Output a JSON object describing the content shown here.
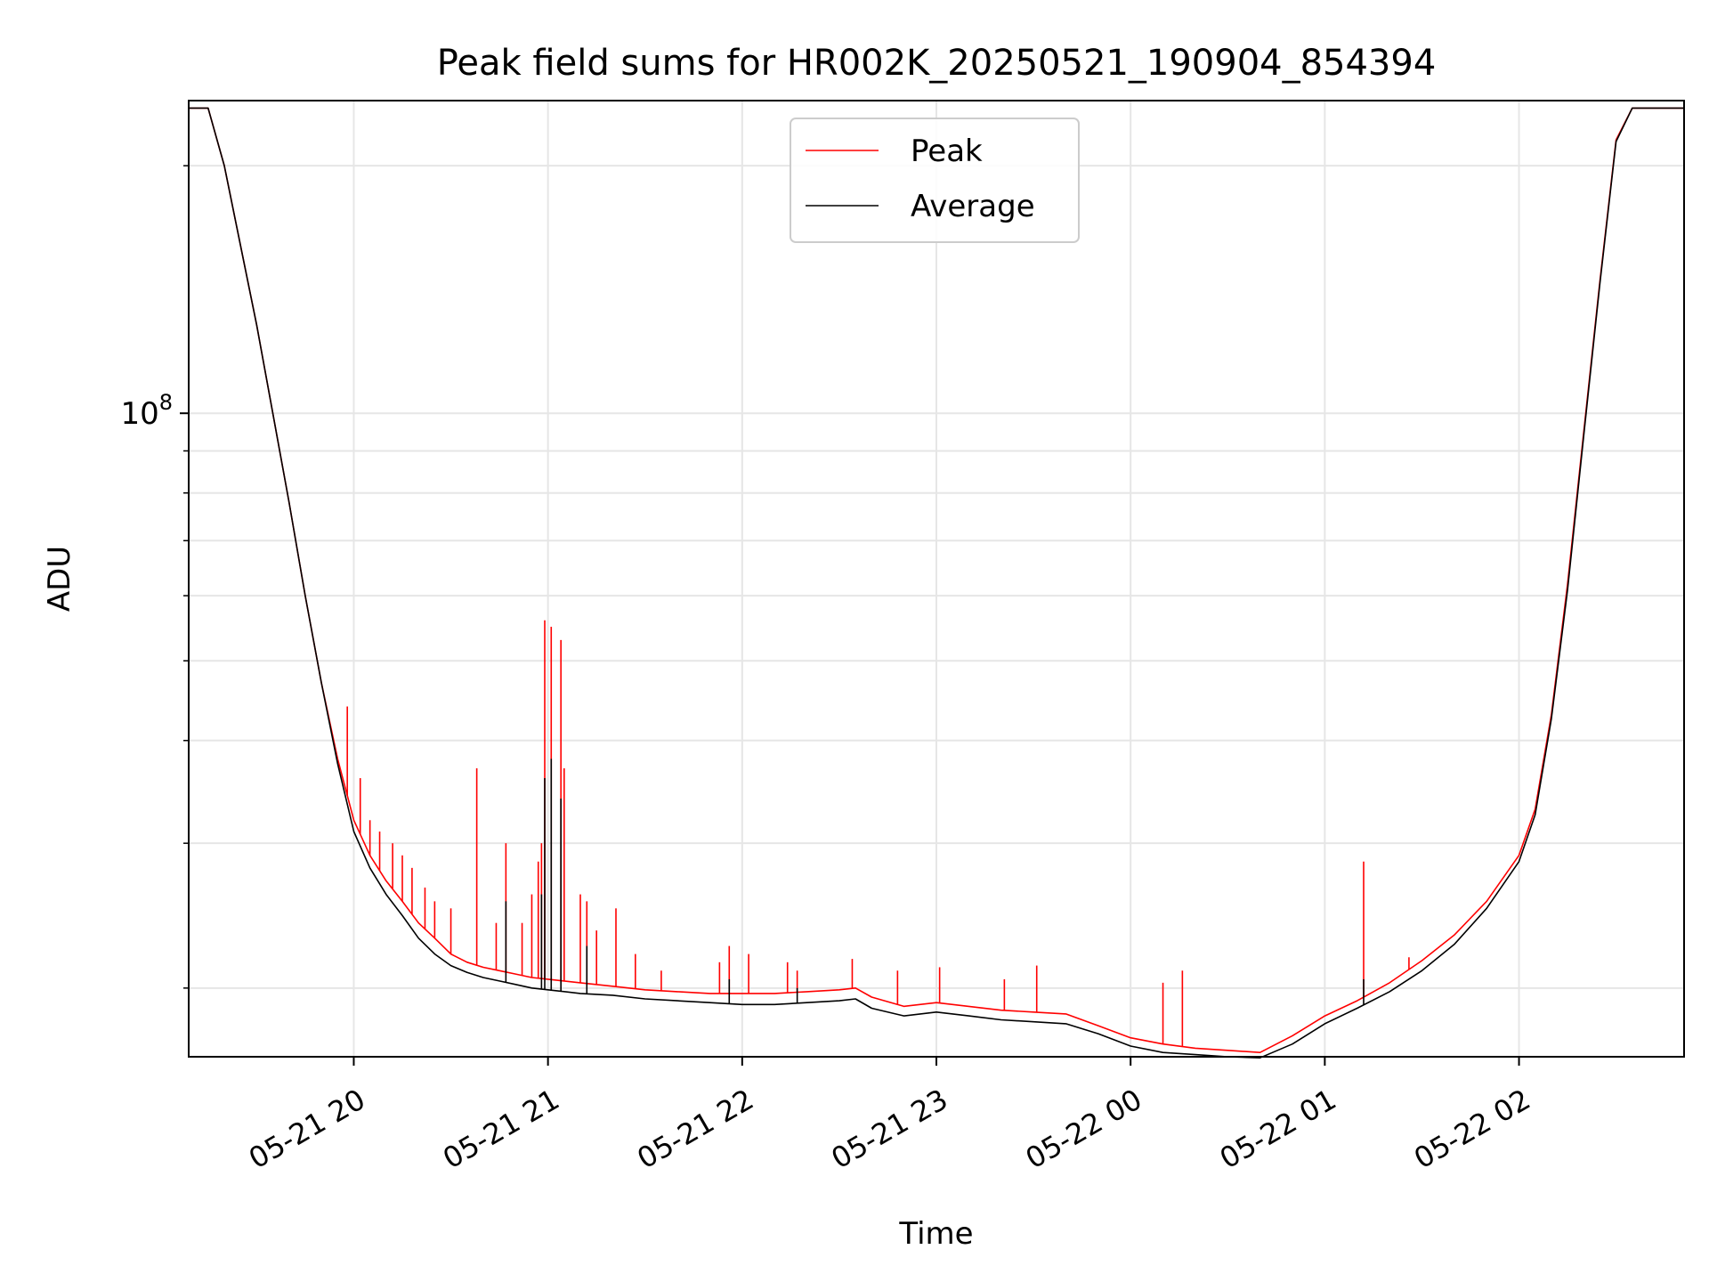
{
  "chart_data": {
    "type": "line",
    "title": "Peak field sums for HR002K_20250521_190904_854394",
    "xlabel": "Time",
    "ylabel": "ADU",
    "x_ticks": [
      "05-21 20",
      "05-21 21",
      "05-21 22",
      "05-21 23",
      "05-22 00",
      "05-22 01",
      "05-22 02"
    ],
    "y_tick_major": {
      "base": "10",
      "exponent": "8"
    },
    "y_scale": "log",
    "y_minor_ticks": [
      20000000.0,
      30000000.0,
      40000000.0,
      50000000.0,
      60000000.0,
      70000000.0,
      80000000.0,
      90000000.0,
      200000000.0
    ],
    "xlim": [
      "05-21 19:09",
      "05-22 02:51"
    ],
    "ylim": [
      16500000,
      240000000
    ],
    "grid": true,
    "legend_position": "upper center",
    "series": [
      {
        "name": "Peak",
        "color": "#ff0000",
        "points": [
          [
            "05-21 19:09",
            235000000
          ],
          [
            "05-21 19:15",
            235000000
          ],
          [
            "05-21 19:20",
            200000000
          ],
          [
            "05-21 19:25",
            160000000
          ],
          [
            "05-21 19:30",
            128000000
          ],
          [
            "05-21 19:35",
            100000000
          ],
          [
            "05-21 19:40",
            78000000
          ],
          [
            "05-21 19:45",
            60000000
          ],
          [
            "05-21 19:50",
            47000000
          ],
          [
            "05-21 19:55",
            38000000
          ],
          [
            "05-21 20:00",
            32000000
          ],
          [
            "05-21 20:05",
            29000000
          ],
          [
            "05-21 20:10",
            27000000
          ],
          [
            "05-21 20:15",
            25500000
          ],
          [
            "05-21 20:20",
            24000000
          ],
          [
            "05-21 20:25",
            23000000
          ],
          [
            "05-21 20:30",
            22000000
          ],
          [
            "05-21 20:35",
            21500000
          ],
          [
            "05-21 20:40",
            21200000
          ],
          [
            "05-21 20:45",
            21000000
          ],
          [
            "05-21 20:50",
            20800000
          ],
          [
            "05-21 20:55",
            20600000
          ],
          [
            "05-21 21:00",
            20500000
          ],
          [
            "05-21 21:10",
            20300000
          ],
          [
            "05-21 21:20",
            20100000
          ],
          [
            "05-21 21:30",
            19900000
          ],
          [
            "05-21 21:40",
            19800000
          ],
          [
            "05-21 21:50",
            19700000
          ],
          [
            "05-21 22:00",
            19700000
          ],
          [
            "05-21 22:10",
            19700000
          ],
          [
            "05-21 22:20",
            19800000
          ],
          [
            "05-21 22:30",
            19900000
          ],
          [
            "05-21 22:35",
            20000000
          ],
          [
            "05-21 22:40",
            19500000
          ],
          [
            "05-21 22:50",
            19000000
          ],
          [
            "05-21 23:00",
            19200000
          ],
          [
            "05-21 23:10",
            19000000
          ],
          [
            "05-21 23:20",
            18800000
          ],
          [
            "05-21 23:30",
            18700000
          ],
          [
            "05-21 23:40",
            18600000
          ],
          [
            "05-21 23:50",
            18000000
          ],
          [
            "05-22 00:00",
            17400000
          ],
          [
            "05-22 00:10",
            17100000
          ],
          [
            "05-22 00:20",
            16900000
          ],
          [
            "05-22 00:30",
            16800000
          ],
          [
            "05-22 00:40",
            16700000
          ],
          [
            "05-22 00:50",
            17500000
          ],
          [
            "05-22 01:00",
            18500000
          ],
          [
            "05-22 01:10",
            19300000
          ],
          [
            "05-22 01:20",
            20300000
          ],
          [
            "05-22 01:30",
            21600000
          ],
          [
            "05-22 01:40",
            23200000
          ],
          [
            "05-22 01:50",
            25500000
          ],
          [
            "05-22 02:00",
            29000000
          ],
          [
            "05-22 02:05",
            33000000
          ],
          [
            "05-22 02:10",
            43000000
          ],
          [
            "05-22 02:15",
            62000000
          ],
          [
            "05-22 02:20",
            95000000
          ],
          [
            "05-22 02:25",
            145000000
          ],
          [
            "05-22 02:30",
            215000000
          ],
          [
            "05-22 02:35",
            235000000
          ],
          [
            "05-22 02:51",
            235000000
          ]
        ],
        "spikes": [
          [
            "05-21 19:58",
            44000000
          ],
          [
            "05-21 20:02",
            36000000
          ],
          [
            "05-21 20:05",
            32000000
          ],
          [
            "05-21 20:08",
            31000000
          ],
          [
            "05-21 20:12",
            30000000
          ],
          [
            "05-21 20:15",
            29000000
          ],
          [
            "05-21 20:18",
            28000000
          ],
          [
            "05-21 20:22",
            26500000
          ],
          [
            "05-21 20:25",
            25500000
          ],
          [
            "05-21 20:30",
            25000000
          ],
          [
            "05-21 20:38",
            37000000
          ],
          [
            "05-21 20:44",
            24000000
          ],
          [
            "05-21 20:47",
            30000000
          ],
          [
            "05-21 20:52",
            24000000
          ],
          [
            "05-21 20:55",
            26000000
          ],
          [
            "05-21 20:57",
            28500000
          ],
          [
            "05-21 20:58",
            30000000
          ],
          [
            "05-21 20:59",
            56000000
          ],
          [
            "05-21 21:01",
            55000000
          ],
          [
            "05-21 21:04",
            53000000
          ],
          [
            "05-21 21:05",
            37000000
          ],
          [
            "05-21 21:10",
            26000000
          ],
          [
            "05-21 21:12",
            25500000
          ],
          [
            "05-21 21:15",
            23500000
          ],
          [
            "05-21 21:21",
            25000000
          ],
          [
            "05-21 21:27",
            22000000
          ],
          [
            "05-21 21:35",
            21000000
          ],
          [
            "05-21 21:53",
            21500000
          ],
          [
            "05-21 21:56",
            22500000
          ],
          [
            "05-21 22:02",
            22000000
          ],
          [
            "05-21 22:14",
            21500000
          ],
          [
            "05-21 22:17",
            21000000
          ],
          [
            "05-21 22:34",
            21700000
          ],
          [
            "05-21 22:48",
            21000000
          ],
          [
            "05-21 23:01",
            21200000
          ],
          [
            "05-21 23:21",
            20500000
          ],
          [
            "05-21 23:31",
            21300000
          ],
          [
            "05-22 00:10",
            20300000
          ],
          [
            "05-22 00:16",
            21000000
          ],
          [
            "05-22 01:12",
            28500000
          ],
          [
            "05-22 01:26",
            21800000
          ]
        ]
      },
      {
        "name": "Average",
        "color": "#000000",
        "points": [
          [
            "05-21 19:09",
            235000000
          ],
          [
            "05-21 19:15",
            235000000
          ],
          [
            "05-21 19:20",
            200000000
          ],
          [
            "05-21 19:25",
            160000000
          ],
          [
            "05-21 19:30",
            128000000
          ],
          [
            "05-21 19:35",
            100000000
          ],
          [
            "05-21 19:40",
            78000000
          ],
          [
            "05-21 19:45",
            60000000
          ],
          [
            "05-21 19:50",
            47000000
          ],
          [
            "05-21 19:55",
            37500000
          ],
          [
            "05-21 20:00",
            31000000
          ],
          [
            "05-21 20:05",
            28000000
          ],
          [
            "05-21 20:10",
            26000000
          ],
          [
            "05-21 20:15",
            24500000
          ],
          [
            "05-21 20:20",
            23000000
          ],
          [
            "05-21 20:25",
            22000000
          ],
          [
            "05-21 20:30",
            21300000
          ],
          [
            "05-21 20:35",
            20900000
          ],
          [
            "05-21 20:40",
            20600000
          ],
          [
            "05-21 20:45",
            20400000
          ],
          [
            "05-21 20:50",
            20200000
          ],
          [
            "05-21 20:55",
            20000000
          ],
          [
            "05-21 21:00",
            19900000
          ],
          [
            "05-21 21:10",
            19700000
          ],
          [
            "05-21 21:20",
            19600000
          ],
          [
            "05-21 21:30",
            19400000
          ],
          [
            "05-21 21:40",
            19300000
          ],
          [
            "05-21 21:50",
            19200000
          ],
          [
            "05-21 22:00",
            19100000
          ],
          [
            "05-21 22:10",
            19100000
          ],
          [
            "05-21 22:20",
            19200000
          ],
          [
            "05-21 22:30",
            19300000
          ],
          [
            "05-21 22:35",
            19400000
          ],
          [
            "05-21 22:40",
            18900000
          ],
          [
            "05-21 22:50",
            18500000
          ],
          [
            "05-21 23:00",
            18700000
          ],
          [
            "05-21 23:10",
            18500000
          ],
          [
            "05-21 23:20",
            18300000
          ],
          [
            "05-21 23:30",
            18200000
          ],
          [
            "05-21 23:40",
            18100000
          ],
          [
            "05-21 23:50",
            17600000
          ],
          [
            "05-22 00:00",
            17000000
          ],
          [
            "05-22 00:10",
            16700000
          ],
          [
            "05-22 00:20",
            16600000
          ],
          [
            "05-22 00:30",
            16500000
          ],
          [
            "05-22 00:40",
            16450000
          ],
          [
            "05-22 00:50",
            17100000
          ],
          [
            "05-22 01:00",
            18100000
          ],
          [
            "05-22 01:10",
            18900000
          ],
          [
            "05-22 01:20",
            19800000
          ],
          [
            "05-22 01:30",
            21000000
          ],
          [
            "05-22 01:40",
            22600000
          ],
          [
            "05-22 01:50",
            25000000
          ],
          [
            "05-22 02:00",
            28500000
          ],
          [
            "05-22 02:05",
            32500000
          ],
          [
            "05-22 02:10",
            42500000
          ],
          [
            "05-22 02:15",
            61000000
          ],
          [
            "05-22 02:20",
            94000000
          ],
          [
            "05-22 02:25",
            144000000
          ],
          [
            "05-22 02:30",
            214000000
          ],
          [
            "05-22 02:35",
            235000000
          ],
          [
            "05-22 02:51",
            235000000
          ]
        ],
        "spikes": [
          [
            "05-21 20:47",
            25500000
          ],
          [
            "05-21 20:58",
            26000000
          ],
          [
            "05-21 20:59",
            36000000
          ],
          [
            "05-21 21:01",
            38000000
          ],
          [
            "05-21 21:04",
            34000000
          ],
          [
            "05-21 21:12",
            22500000
          ],
          [
            "05-21 21:56",
            20500000
          ],
          [
            "05-21 22:17",
            20000000
          ],
          [
            "05-22 01:12",
            20500000
          ]
        ]
      }
    ]
  }
}
